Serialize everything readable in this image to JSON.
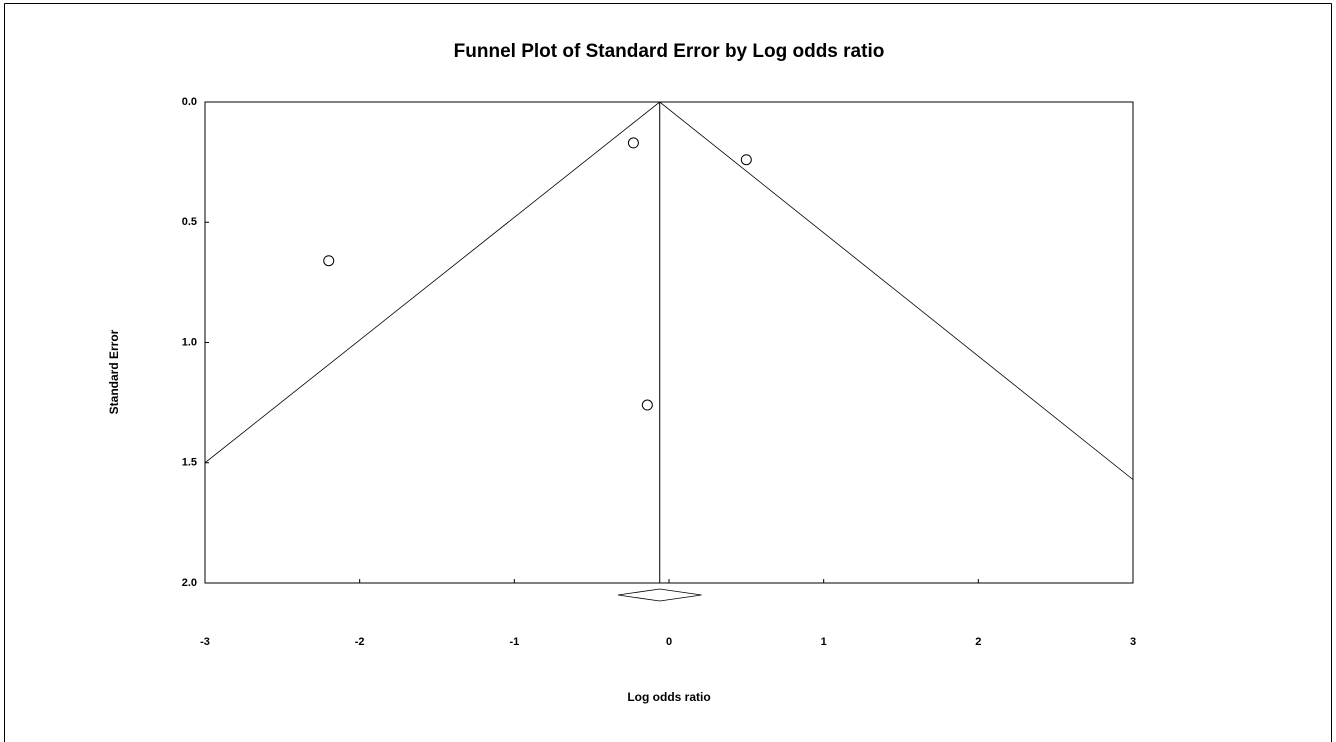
{
  "chart_data": {
    "type": "scatter",
    "title": "Funnel Plot of Standard Error by Log odds ratio",
    "x_label": "Log odds ratio",
    "y_label": "Standard Error",
    "x": [
      -0.23,
      0.5,
      -2.2,
      -0.14
    ],
    "values": [
      0.17,
      0.24,
      0.66,
      1.26
    ],
    "xlim": [
      -3,
      3
    ],
    "ylim": [
      0,
      2
    ],
    "y_inverted": true,
    "xticks": [
      -3,
      -2,
      -1,
      0,
      1,
      2,
      3
    ],
    "yticks": [
      {
        "value": 0,
        "label": "0.0"
      },
      {
        "value": 0.5,
        "label": "0.5"
      },
      {
        "value": 1,
        "label": "1.0"
      },
      {
        "value": 1.5,
        "label": "1.5"
      },
      {
        "value": 2,
        "label": "2.0"
      }
    ],
    "funnel": {
      "x": [
        -3,
        -0.06,
        3
      ],
      "values": [
        1.5,
        0,
        1.57
      ]
    },
    "combined": {
      "estimate": -0.06,
      "ci": [
        -0.33,
        0.21
      ]
    },
    "color": "#000000"
  }
}
